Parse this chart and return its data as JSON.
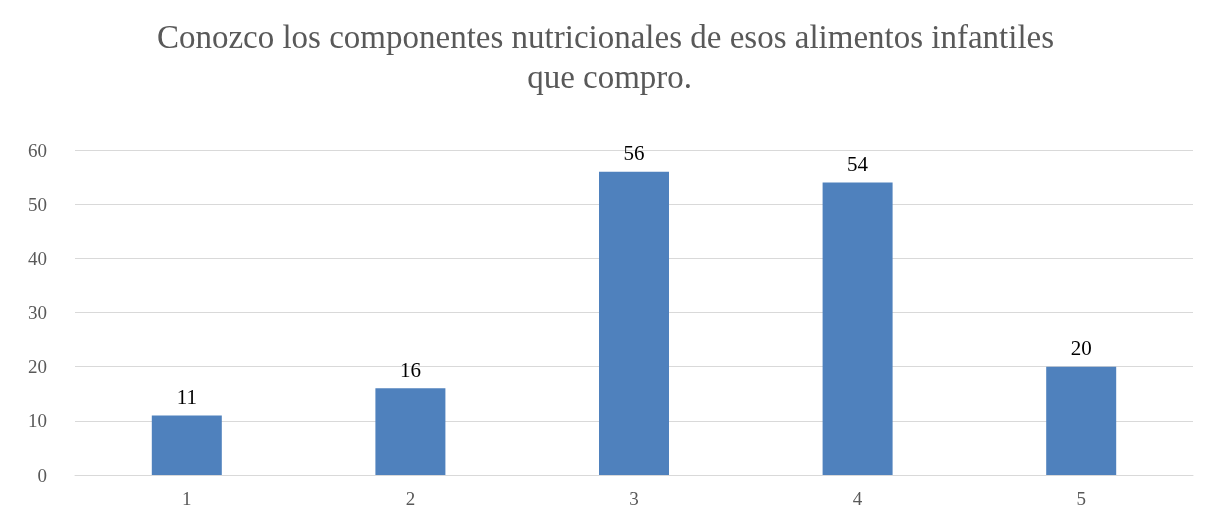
{
  "chart_data": {
    "type": "bar",
    "title": "Conozco los componentes nutricionales de esos alimentos infantiles que compro.",
    "categories": [
      "1",
      "2",
      "3",
      "4",
      "5"
    ],
    "values": [
      11,
      16,
      56,
      54,
      20
    ],
    "color": "#4f81bd",
    "ylim": [
      0,
      60
    ],
    "yticks": [
      0,
      10,
      20,
      30,
      40,
      50,
      60
    ],
    "grid": "y",
    "data_labels": true,
    "legend": false
  }
}
